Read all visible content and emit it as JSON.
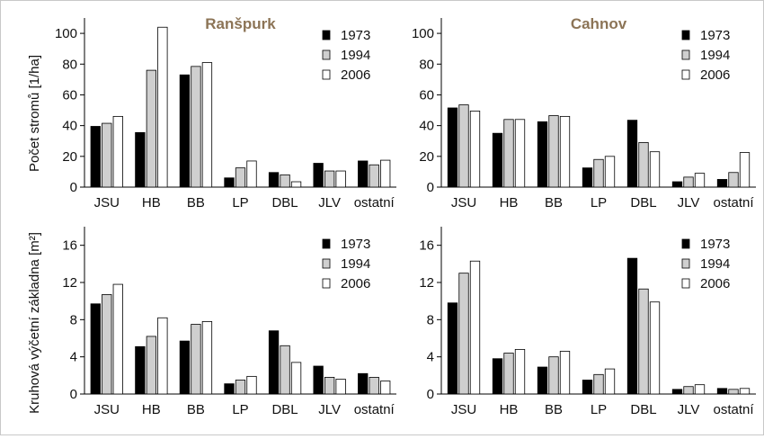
{
  "chart_data": [
    {
      "type": "bar",
      "title": "Ranšpurk",
      "ylabel": "Počet stromů [1/ha]",
      "categories": [
        "JSU",
        "HB",
        "BB",
        "LP",
        "DBL",
        "JLV",
        "ostatní"
      ],
      "ylim": [
        0,
        110
      ],
      "yticks": [
        "0",
        "20",
        "40",
        "60",
        "80",
        "100"
      ],
      "series": [
        {
          "name": "1973",
          "values": [
            39.5,
            35.5,
            73,
            6,
            9.5,
            15.5,
            17
          ]
        },
        {
          "name": "1994",
          "values": [
            41.5,
            76,
            78.5,
            12.5,
            8,
            10.5,
            14.5
          ]
        },
        {
          "name": "2006",
          "values": [
            46,
            104,
            81,
            17,
            3.5,
            10.5,
            17.5
          ]
        }
      ],
      "legend_position": "top-right"
    },
    {
      "type": "bar",
      "title": "Cahnov",
      "ylabel": "",
      "categories": [
        "JSU",
        "HB",
        "BB",
        "LP",
        "DBL",
        "JLV",
        "ostatní"
      ],
      "ylim": [
        0,
        110
      ],
      "yticks": [
        "0",
        "20",
        "40",
        "60",
        "80",
        "100"
      ],
      "series": [
        {
          "name": "1973",
          "values": [
            51.5,
            35,
            42.5,
            12.5,
            43.5,
            3.5,
            5
          ]
        },
        {
          "name": "1994",
          "values": [
            53.5,
            44,
            46.5,
            18,
            29,
            6.5,
            9.5
          ]
        },
        {
          "name": "2006",
          "values": [
            49.5,
            44,
            46,
            20,
            23,
            9,
            22.5
          ]
        }
      ],
      "legend_position": "top-right"
    },
    {
      "type": "bar",
      "title": "",
      "ylabel": "Kruhová výčetní základna [m²]",
      "categories": [
        "JSU",
        "HB",
        "BB",
        "LP",
        "DBL",
        "JLV",
        "ostatní"
      ],
      "ylim": [
        0,
        18
      ],
      "yticks": [
        "0",
        "4",
        "8",
        "12",
        "16"
      ],
      "series": [
        {
          "name": "1973",
          "values": [
            9.7,
            5.1,
            5.7,
            1.1,
            6.8,
            3.0,
            2.2
          ]
        },
        {
          "name": "1994",
          "values": [
            10.7,
            6.2,
            7.5,
            1.5,
            5.2,
            1.8,
            1.8
          ]
        },
        {
          "name": "2006",
          "values": [
            11.8,
            8.2,
            7.8,
            1.9,
            3.4,
            1.6,
            1.4
          ]
        }
      ],
      "legend_position": "top-right"
    },
    {
      "type": "bar",
      "title": "",
      "ylabel": "",
      "categories": [
        "JSU",
        "HB",
        "BB",
        "LP",
        "DBL",
        "JLV",
        "ostatní"
      ],
      "ylim": [
        0,
        18
      ],
      "yticks": [
        "0",
        "4",
        "8",
        "12",
        "16"
      ],
      "series": [
        {
          "name": "1973",
          "values": [
            9.8,
            3.8,
            2.9,
            1.5,
            14.6,
            0.5,
            0.6
          ]
        },
        {
          "name": "1994",
          "values": [
            13.0,
            4.4,
            4.0,
            2.1,
            11.3,
            0.8,
            0.5
          ]
        },
        {
          "name": "2006",
          "values": [
            14.3,
            4.8,
            4.6,
            2.7,
            9.9,
            1.0,
            0.6
          ]
        }
      ],
      "legend_position": "top-right"
    }
  ],
  "series_colors": {
    "1973": "#000000",
    "1994": "#cfcfcf",
    "2006": "#ffffff"
  }
}
